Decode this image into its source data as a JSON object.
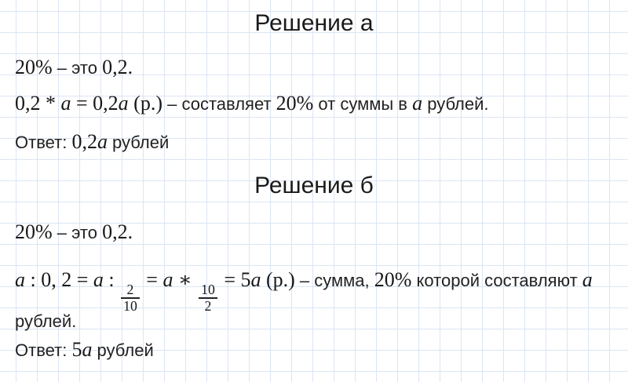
{
  "page": {
    "background_color": "#ffffff",
    "grid_line_color": "#dbe5f5",
    "text_color": "#1f1f1f"
  },
  "sections": [
    {
      "title": "Решение а",
      "intro": {
        "pct": "20%",
        "mid": " – это ",
        "val": "0,2."
      },
      "work": {
        "m1": "0,2 * ",
        "v1": "a",
        "m2": " = 0,2",
        "v2": "a",
        "m3": " (р.)",
        "t1": " – составляет ",
        "m4": "20%",
        "t2": " от суммы в ",
        "v3": "a",
        "t3": " рублей."
      },
      "answer": {
        "label": "Ответ: ",
        "m1": "0,2",
        "v1": "a",
        "t1": " рублей"
      }
    },
    {
      "title": "Решение б",
      "intro": {
        "pct": "20%",
        "mid": " – это ",
        "val": "0,2."
      },
      "work": {
        "v1": "a",
        "m1": " : 0, 2 = ",
        "v2": "a",
        "m2": " : ",
        "frac1": {
          "num": "2",
          "den": "10"
        },
        "m3": " = ",
        "v3": "a",
        "m4": " ∗ ",
        "frac2": {
          "num": "10",
          "den": "2"
        },
        "m5": " = 5",
        "v4": "a",
        "m6": " (р.)",
        "t1": " – сумма, ",
        "m7": "20%",
        "t2": " которой составляют ",
        "v5": "a",
        "t3": "рублей."
      },
      "answer": {
        "label": "Ответ: ",
        "m1": "5",
        "v1": "a",
        "t1": " рублей"
      }
    }
  ]
}
